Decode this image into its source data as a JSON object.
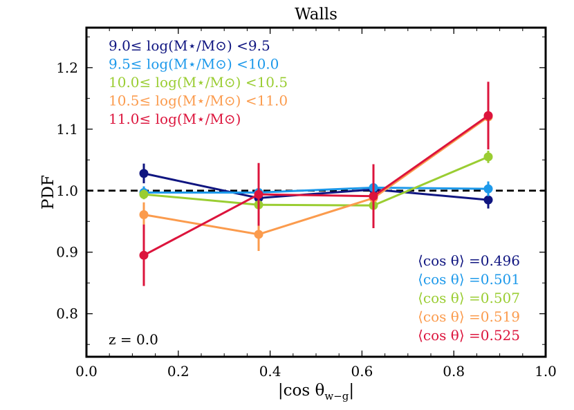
{
  "chart_data": {
    "type": "line",
    "title": "Walls",
    "xlabel": "|cos θw−g|",
    "xlabel_main": "|cos θ",
    "xlabel_sub": "w−g",
    "xlabel_end": "|",
    "ylabel": "PDF",
    "xlim": [
      0.0,
      1.0
    ],
    "ylim": [
      0.73,
      1.265
    ],
    "xticks": [
      0.0,
      0.2,
      0.4,
      0.6,
      0.8,
      1.0
    ],
    "xtick_labels": [
      "0.0",
      "0.2",
      "0.4",
      "0.6",
      "0.8",
      "1.0"
    ],
    "yticks": [
      0.8,
      0.9,
      1.0,
      1.1,
      1.2
    ],
    "ytick_labels": [
      "0.8",
      "0.9",
      "1.0",
      "1.1",
      "1.2"
    ],
    "reference_line": {
      "y": 1.0,
      "style": "dashed",
      "color": "#000000"
    },
    "x": [
      0.125,
      0.375,
      0.625,
      0.875
    ],
    "series": [
      {
        "name": "9.0≤ log(M⋆/M⊙) <9.5",
        "color": "#0f1580",
        "values": [
          1.028,
          0.988,
          1.002,
          0.985
        ],
        "errors": [
          0.016,
          0.012,
          0.01,
          0.014
        ],
        "mean_label": "⟨cos θ⟩ =0.496"
      },
      {
        "name": "9.5≤ log(M⋆/M⊙) <10.0",
        "color": "#1d99ea",
        "values": [
          0.997,
          0.997,
          1.005,
          1.003
        ],
        "errors": [
          0.01,
          0.009,
          0.008,
          0.012
        ],
        "mean_label": "⟨cos θ⟩ =0.501"
      },
      {
        "name": "10.0≤ log(M⋆/M⊙) <10.5",
        "color": "#9acd32",
        "values": [
          0.994,
          0.977,
          0.976,
          1.055
        ],
        "errors": [
          0.008,
          0.008,
          0.008,
          0.01
        ],
        "mean_label": "⟨cos θ⟩ =0.507"
      },
      {
        "name": "10.5≤ log(M⋆/M⊙) <11.0",
        "color": "#fb9b4d",
        "values": [
          0.961,
          0.929,
          0.988,
          1.12
        ],
        "errors": [
          0.02,
          0.027,
          0.01,
          0.008
        ],
        "mean_label": "⟨cos θ⟩ =0.519"
      },
      {
        "name": "11.0≤ log(M⋆/M⊙)",
        "color": "#dc143c",
        "values": [
          0.895,
          0.994,
          0.991,
          1.122
        ],
        "errors": [
          0.05,
          0.051,
          0.052,
          0.055
        ],
        "mean_label": "⟨cos θ⟩ =0.525"
      }
    ],
    "annotation": "z = 0.0",
    "legend_position": "top-left",
    "mean_labels_position": "bottom-right",
    "grid": false
  }
}
